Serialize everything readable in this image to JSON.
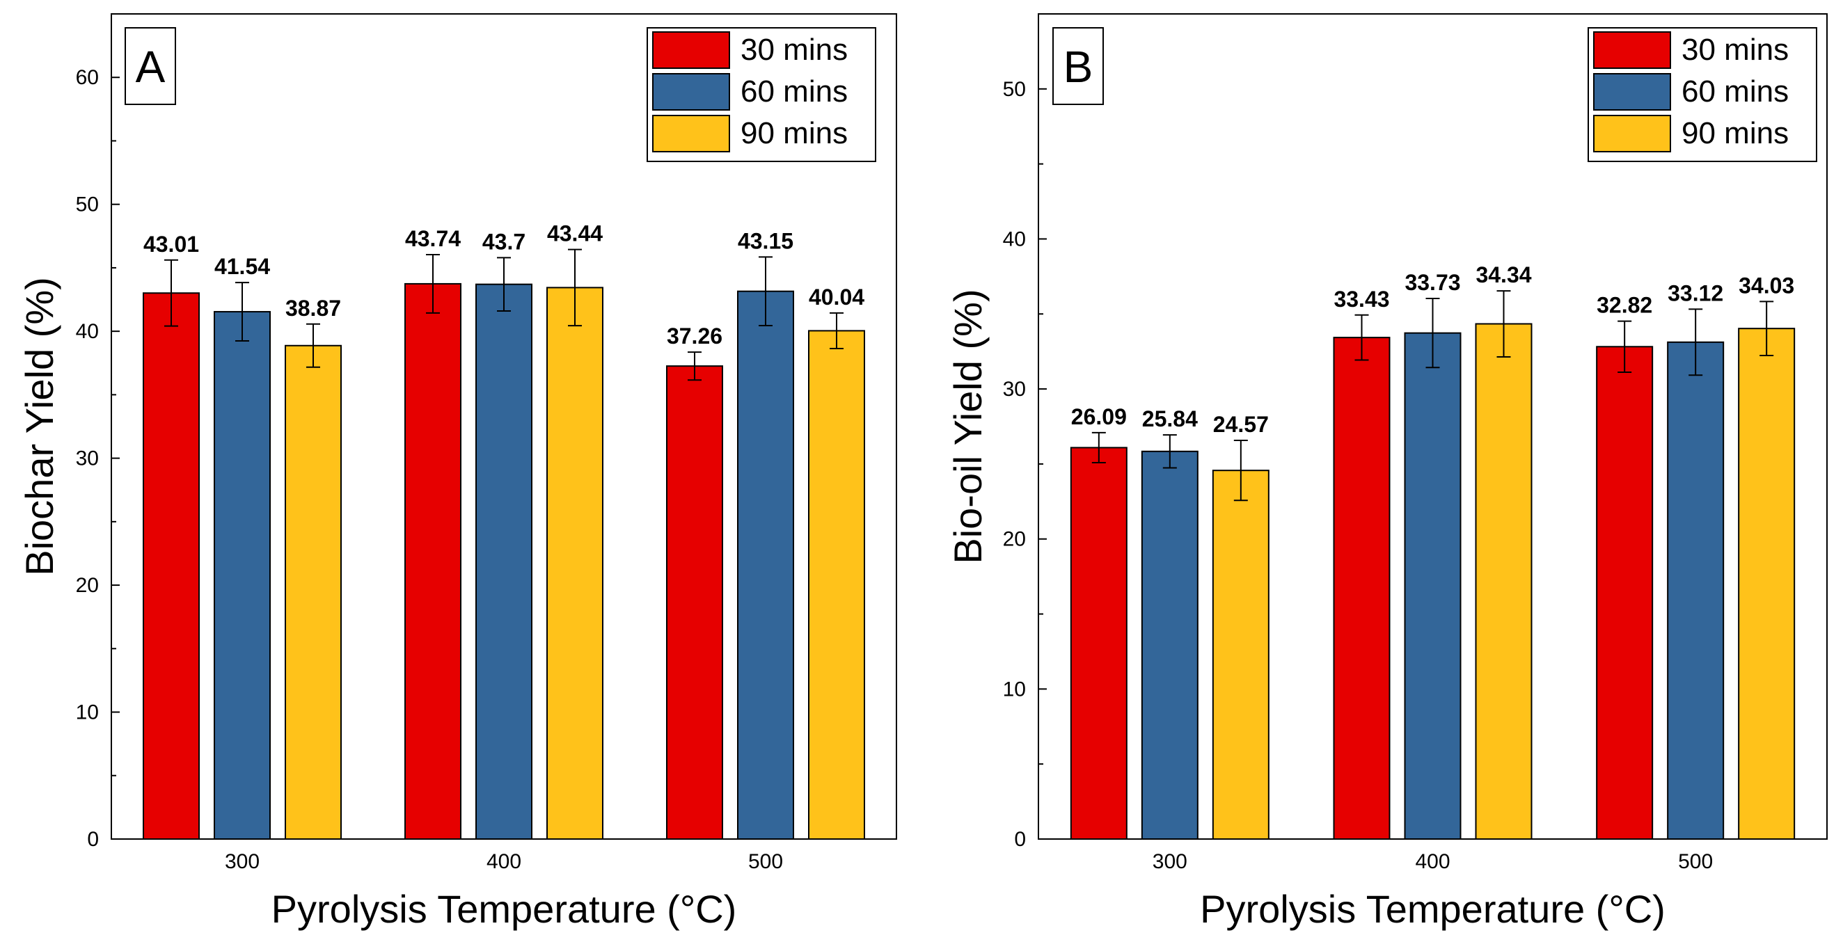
{
  "chart_data": [
    {
      "type": "bar",
      "panel_label": "A",
      "title": "",
      "xlabel": "Pyrolysis Temperature (°C)",
      "ylabel": "Biochar Yield (%)",
      "ylim": [
        0,
        65
      ],
      "yticks": [
        0,
        10,
        20,
        30,
        40,
        50,
        60
      ],
      "categories": [
        "300",
        "400",
        "500"
      ],
      "legend_position": "top-right",
      "series": [
        {
          "name": "30 mins",
          "color": "#e60000",
          "values": [
            43.01,
            43.74,
            37.26
          ],
          "errors": [
            2.6,
            2.3,
            1.1
          ],
          "labels": [
            "43.01",
            "43.74",
            "37.26"
          ]
        },
        {
          "name": "60 mins",
          "color": "#336699",
          "values": [
            41.54,
            43.7,
            43.15
          ],
          "errors": [
            2.3,
            2.1,
            2.7
          ],
          "labels": [
            "41.54",
            "43.7",
            "43.15"
          ]
        },
        {
          "name": "90 mins",
          "color": "#ffc21a",
          "values": [
            38.87,
            43.44,
            40.04
          ],
          "errors": [
            1.7,
            3.0,
            1.4
          ],
          "labels": [
            "38.87",
            "43.44",
            "40.04"
          ]
        }
      ]
    },
    {
      "type": "bar",
      "panel_label": "B",
      "title": "",
      "xlabel": "Pyrolysis Temperature (°C)",
      "ylabel": "Bio-oil Yield (%)",
      "ylim": [
        0,
        55
      ],
      "yticks": [
        0,
        10,
        20,
        30,
        40,
        50
      ],
      "categories": [
        "300",
        "400",
        "500"
      ],
      "legend_position": "top-right",
      "series": [
        {
          "name": "30 mins",
          "color": "#e60000",
          "values": [
            26.09,
            33.43,
            32.82
          ],
          "errors": [
            1.0,
            1.5,
            1.7
          ],
          "labels": [
            "26.09",
            "33.43",
            "32.82"
          ]
        },
        {
          "name": "60 mins",
          "color": "#336699",
          "values": [
            25.84,
            33.73,
            33.12
          ],
          "errors": [
            1.1,
            2.3,
            2.2
          ],
          "labels": [
            "25.84",
            "33.73",
            "33.12"
          ]
        },
        {
          "name": "90 mins",
          "color": "#ffc21a",
          "values": [
            24.57,
            34.34,
            34.03
          ],
          "errors": [
            2.0,
            2.2,
            1.8
          ],
          "labels": [
            "24.57",
            "34.34",
            "34.03"
          ]
        }
      ]
    }
  ]
}
